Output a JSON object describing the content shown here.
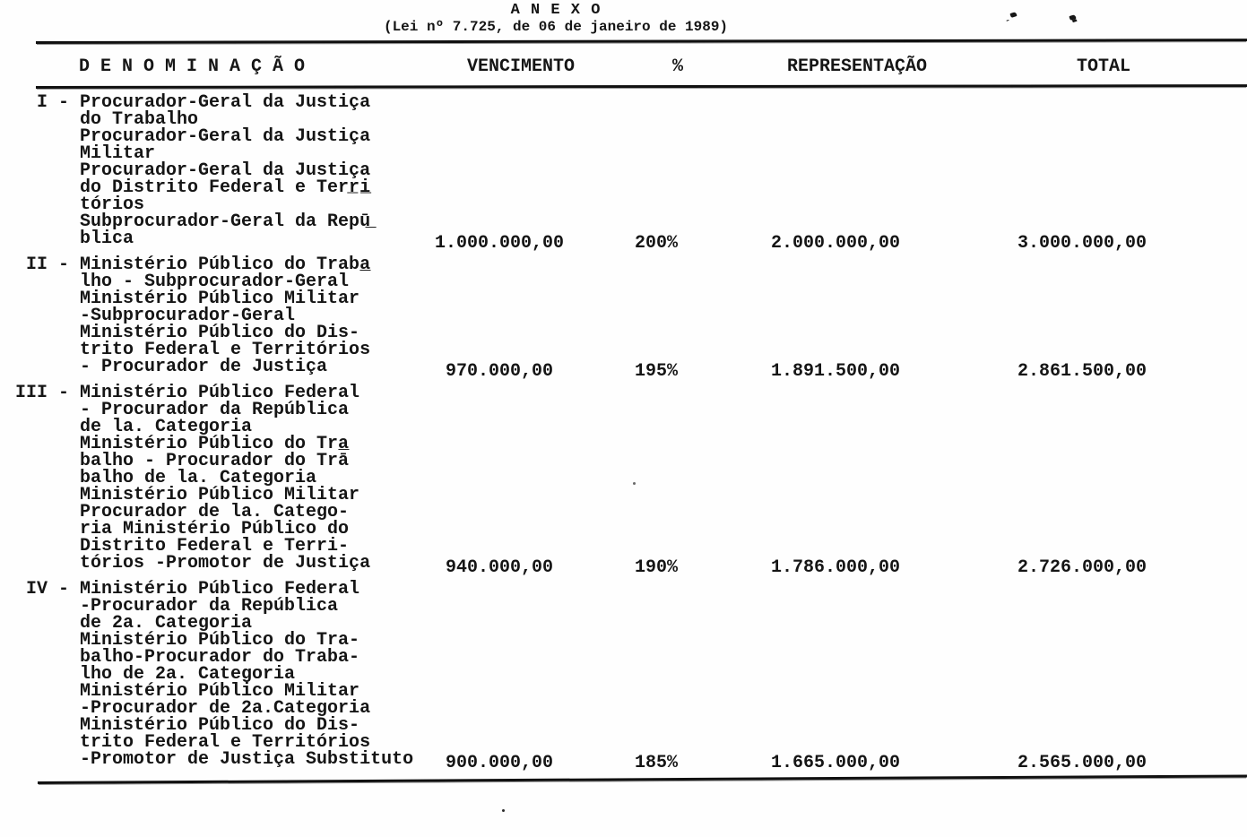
{
  "document": {
    "title": "A N E X O",
    "subtitle": "(Lei nº 7.725, de 06 de janeiro de 1989)",
    "table": {
      "headers": {
        "denominacao": "D E N O M I N A Ç Ã O",
        "vencimento": "VENCIMENTO",
        "percent": "%",
        "representacao": "REPRESENTAÇÃO",
        "total": "TOTAL"
      },
      "rows": [
        {
          "numeral": "I",
          "lines": [
            "Procurador-Geral da Justiça",
            "do Trabalho",
            "Procurador-Geral da Justiça",
            "Militar",
            "Procurador-Geral da Justiça",
            "do Distrito Federal e Terr̲i̲",
            "tórios",
            "Subprocurador-Geral da Repū̲",
            "blica"
          ],
          "vencimento": "1.000.000,00",
          "percent": "200%",
          "representacao": "2.000.000,00",
          "total": "3.000.000,00"
        },
        {
          "numeral": "II",
          "lines": [
            "Ministério Público do Traba̲",
            "lho - Subprocurador-Geral",
            "Ministério Público Militar",
            "-Subprocurador-Geral",
            "Ministério Público do Dis-",
            "trito Federal e Territórios",
            "- Procurador de Justiça"
          ],
          "vencimento": "970.000,00",
          "percent": "195%",
          "representacao": "1.891.500,00",
          "total": "2.861.500,00"
        },
        {
          "numeral": "III",
          "lines": [
            "Ministério Público Federal",
            "- Procurador da República",
            "de la. Categoria",
            "Ministério Público do Tra̲",
            "balho - Procurador do Trā",
            "balho de la. Categoria",
            "Ministério Público Militar",
            "Procurador de la. Catego-",
            "ria Ministério Público do",
            "Distrito Federal e Terri-",
            "tórios -Promotor de Justiça"
          ],
          "vencimento": "940.000,00",
          "percent": "190%",
          "representacao": "1.786.000,00",
          "total": "2.726.000,00"
        },
        {
          "numeral": "IV",
          "lines": [
            "Ministério Público Federal",
            "-Procurador da República",
            "de 2a. Categoria",
            "Ministério Público do Tra-",
            "balho-Procurador do Traba-",
            "lho de 2a. Categoria",
            "Ministério Público Militar",
            "-Procurador de 2a.Categoria",
            "Ministério Público do Dis-",
            "trito Federal e Territórios",
            "-Promotor de Justiça Substituto"
          ],
          "vencimento": "900.000,00",
          "percent": "185%",
          "representacao": "1.665.000,00",
          "total": "2.565.000,00"
        }
      ]
    }
  }
}
